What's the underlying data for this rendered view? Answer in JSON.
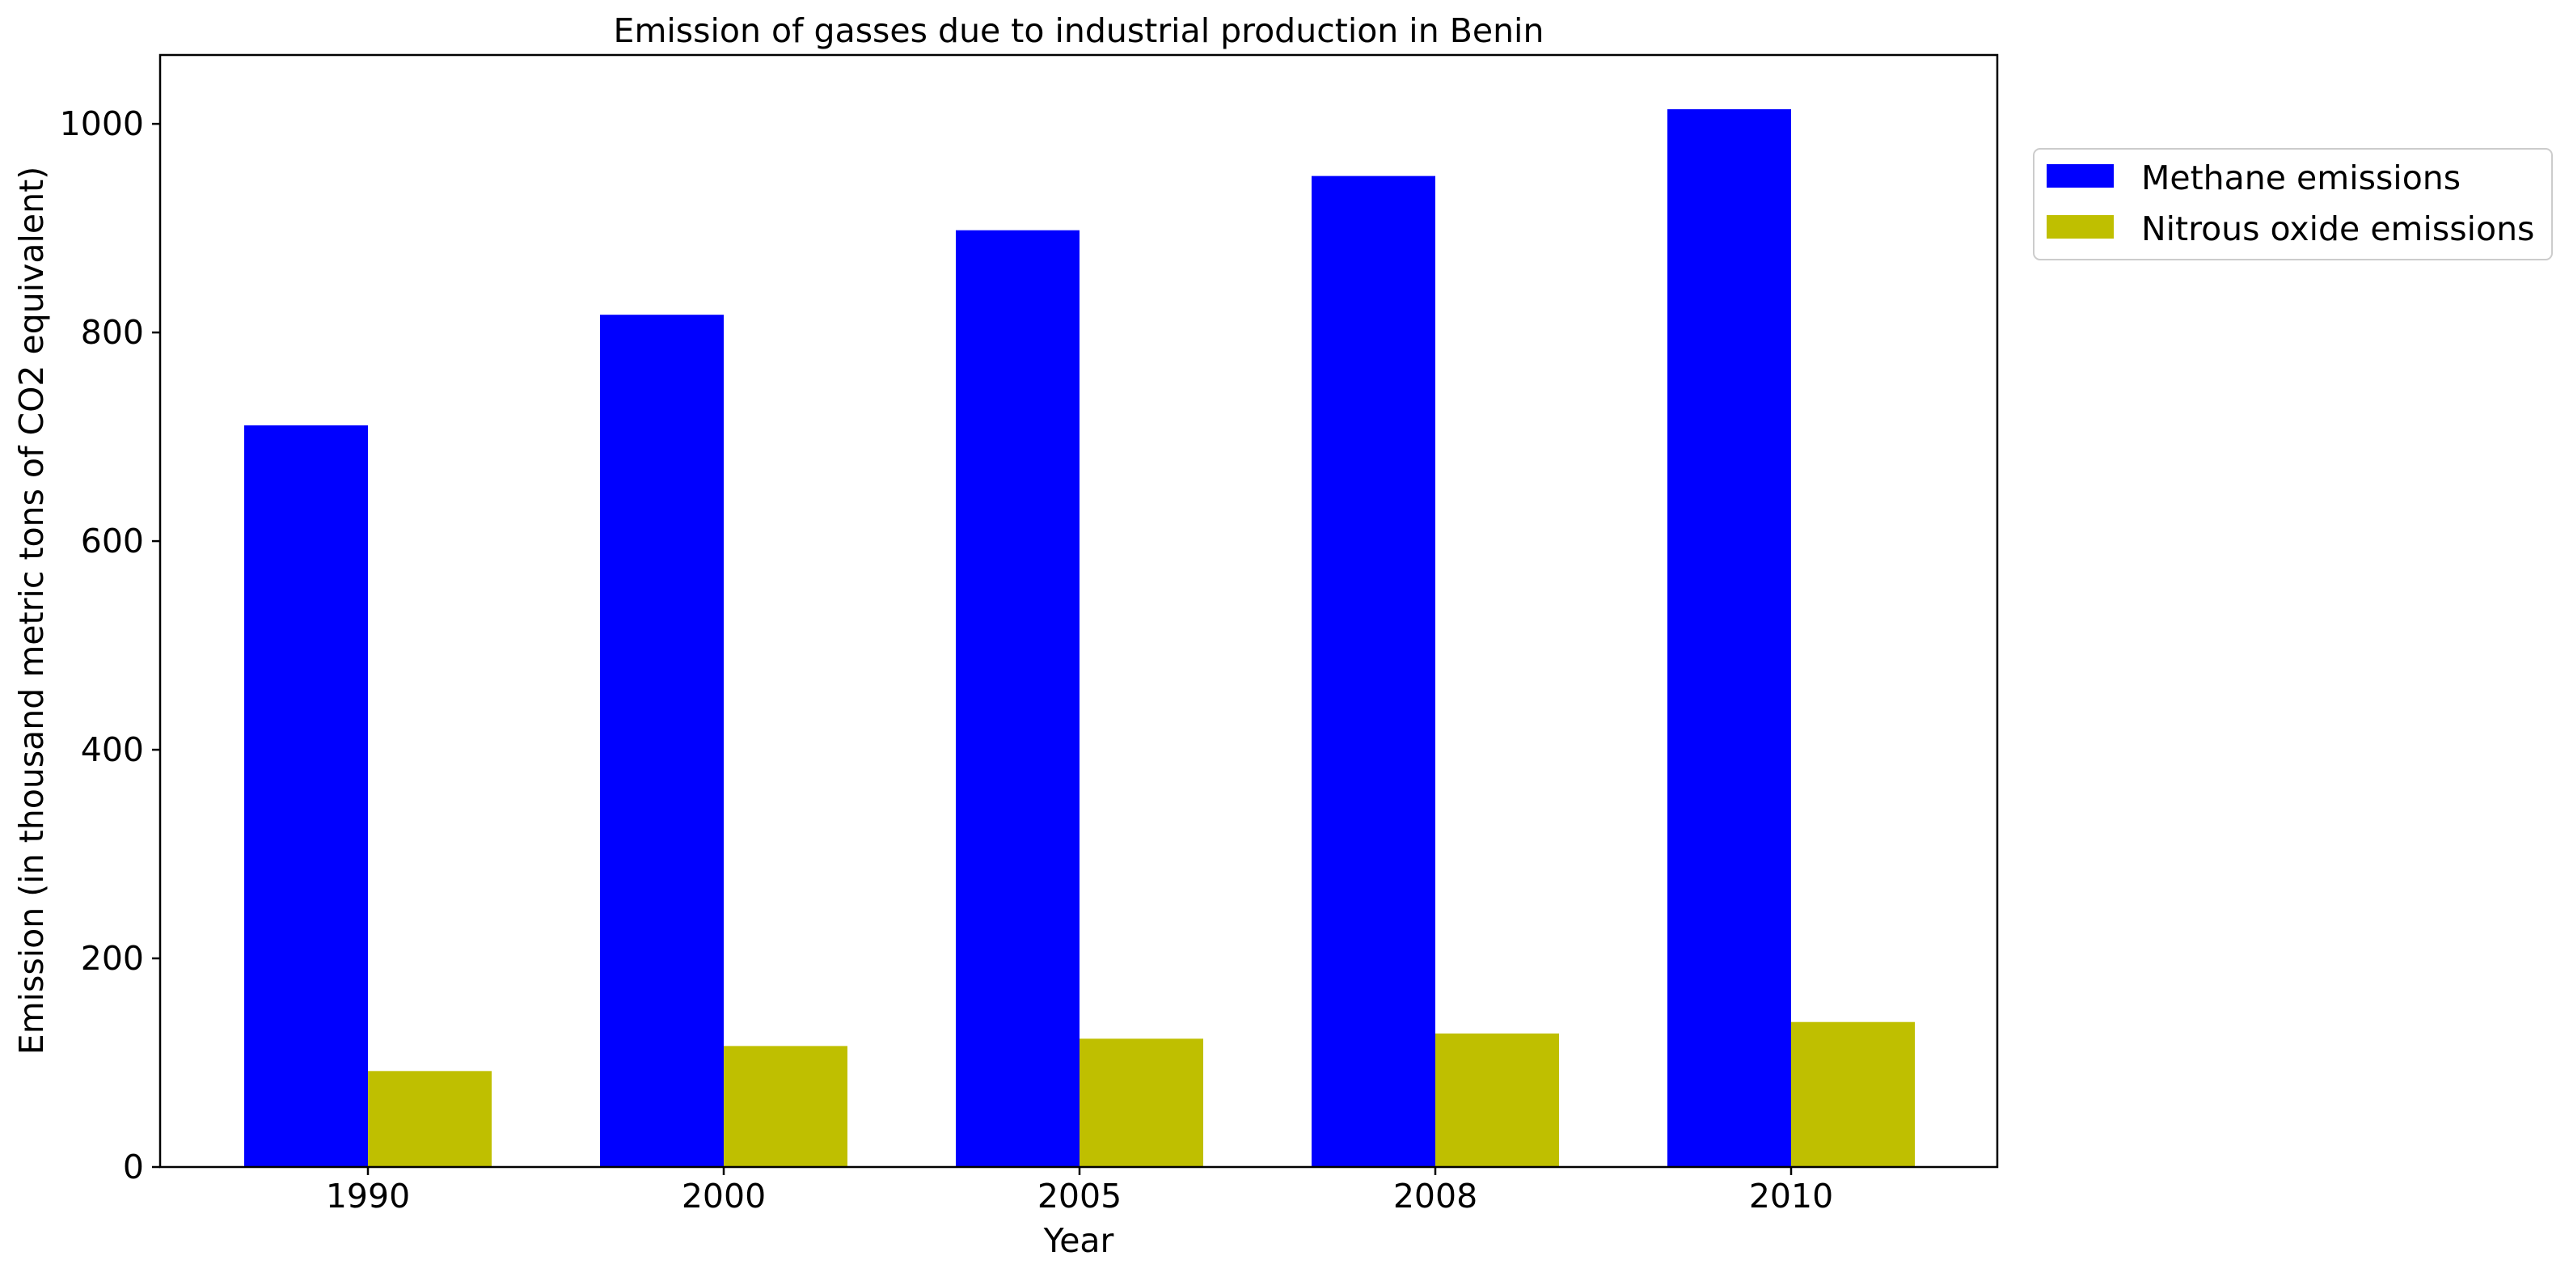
{
  "chart_data": {
    "type": "bar",
    "title": "Emission of gasses due to industrial production in Benin",
    "xlabel": "Year",
    "ylabel": "Emission (in thousand metric tons of CO2 equivalent)",
    "categories": [
      "1990",
      "2000",
      "2005",
      "2008",
      "2010"
    ],
    "series": [
      {
        "name": "Methane emissions",
        "color": "#0000ff",
        "values": [
          711,
          817,
          898,
          950,
          1014
        ]
      },
      {
        "name": "Nitrous oxide emissions",
        "color": "#bfbf00",
        "values": [
          92,
          116,
          123,
          128,
          139
        ]
      }
    ],
    "ylim": [
      0,
      1066
    ],
    "yticks": [
      0,
      200,
      400,
      600,
      800,
      1000
    ],
    "legend_position": "upper-right-outside"
  }
}
